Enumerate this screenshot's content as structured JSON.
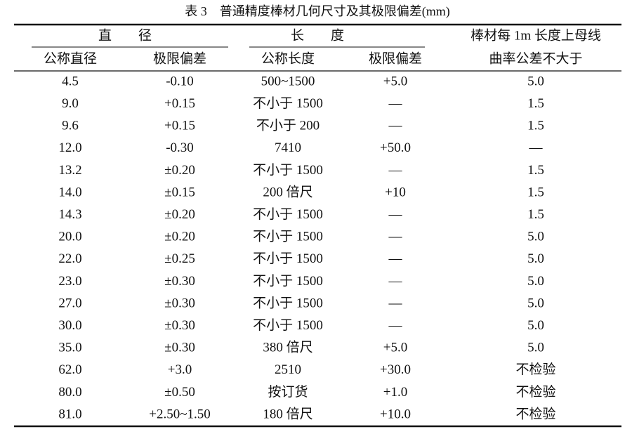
{
  "title": "表 3　普通精度棒材几何尺寸及其极限偏差(mm)",
  "header": {
    "groups": [
      "直　　径",
      "长　　度",
      "棒材每 1m 长度上母线"
    ],
    "columns": [
      "公称直径",
      "极限偏差",
      "公称长度",
      "极限偏差",
      "曲率公差不大于"
    ]
  },
  "table": {
    "rows": [
      [
        "4.5",
        "-0.10",
        "500~1500",
        "+5.0",
        "5.0"
      ],
      [
        "9.0",
        "+0.15",
        "不小于 1500",
        "—",
        "1.5"
      ],
      [
        "9.6",
        "+0.15",
        "不小于 200",
        "—",
        "1.5"
      ],
      [
        "12.0",
        "-0.30",
        "7410",
        "+50.0",
        "—"
      ],
      [
        "13.2",
        "±0.20",
        "不小于 1500",
        "—",
        "1.5"
      ],
      [
        "14.0",
        "±0.15",
        "200 倍尺",
        "+10",
        "1.5"
      ],
      [
        "14.3",
        "±0.20",
        "不小于 1500",
        "—",
        "1.5"
      ],
      [
        "20.0",
        "±0.20",
        "不小于 1500",
        "—",
        "5.0"
      ],
      [
        "22.0",
        "±0.25",
        "不小于 1500",
        "—",
        "5.0"
      ],
      [
        "23.0",
        "±0.30",
        "不小于 1500",
        "—",
        "5.0"
      ],
      [
        "27.0",
        "±0.30",
        "不小于 1500",
        "—",
        "5.0"
      ],
      [
        "30.0",
        "±0.30",
        "不小于 1500",
        "—",
        "5.0"
      ],
      [
        "35.0",
        "±0.30",
        "380 倍尺",
        "+5.0",
        "5.0"
      ],
      [
        "62.0",
        "+3.0",
        "2510",
        "+30.0",
        "不检验"
      ],
      [
        "80.0",
        "±0.50",
        "按订货",
        "+1.0",
        "不检验"
      ],
      [
        "81.0",
        "+2.50~1.50",
        "180 倍尺",
        "+10.0",
        "不检验"
      ]
    ]
  }
}
